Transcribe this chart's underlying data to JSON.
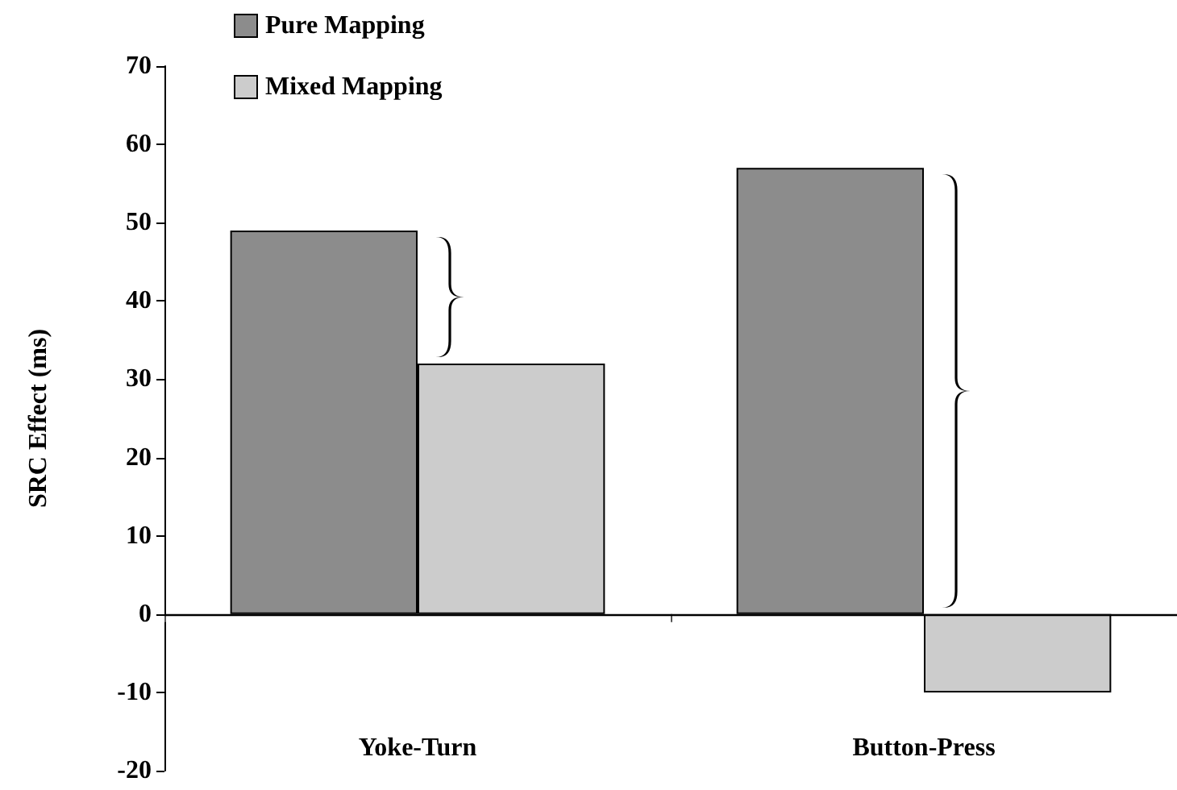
{
  "chart_data": {
    "type": "bar",
    "ylabel": "SRC Effect (ms)",
    "categories": [
      "Yoke-Turn",
      "Button-Press"
    ],
    "series": [
      {
        "name": "Pure Mapping",
        "color": "#8c8c8c",
        "values": [
          49,
          57
        ]
      },
      {
        "name": "Mixed Mapping",
        "color": "#cccccc",
        "values": [
          32,
          -10
        ]
      }
    ],
    "ref_lines": [
      {
        "axis": "y",
        "value": 0,
        "color": "#000000"
      }
    ],
    "ylim": [
      -20,
      70
    ],
    "yticks": [
      -20,
      -10,
      0,
      10,
      20,
      30,
      40,
      50,
      60,
      70
    ],
    "grid": false,
    "legend": "top left"
  }
}
